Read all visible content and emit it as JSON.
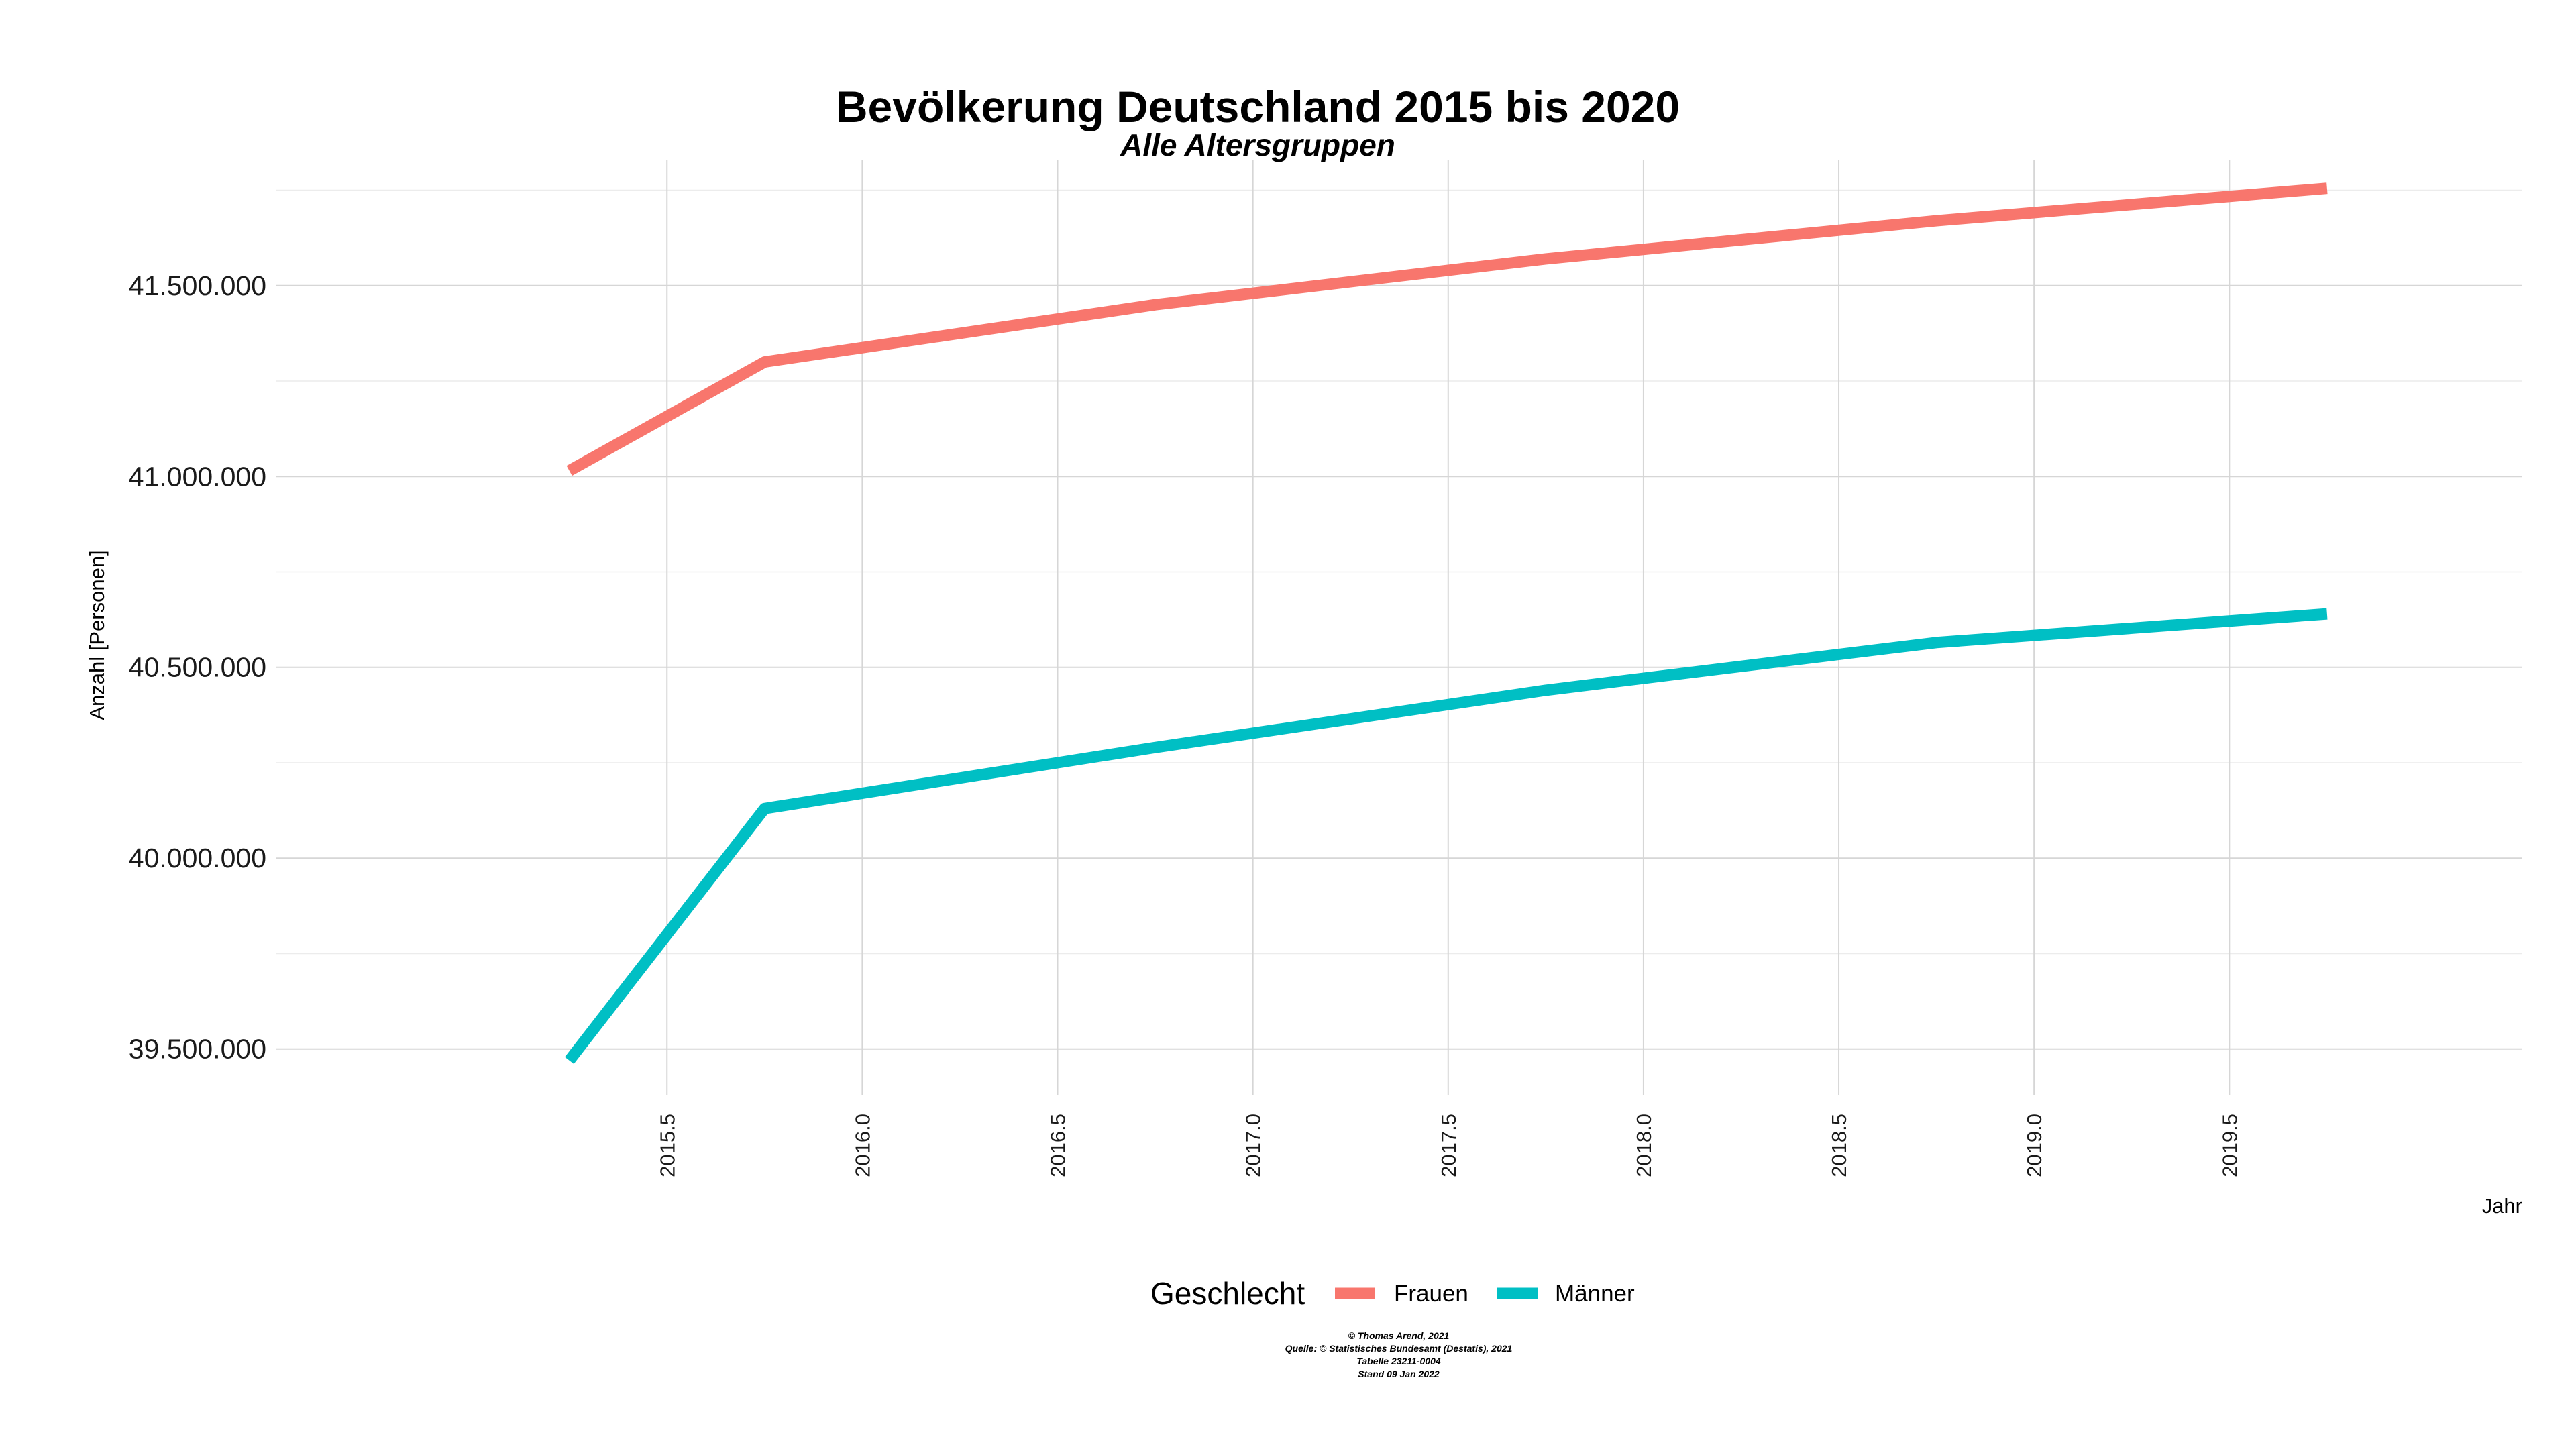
{
  "chart_data": {
    "type": "line",
    "title": "Bevölkerung Deutschland 2015 bis 2020",
    "subtitle": "Alle Altersgruppen",
    "xlabel": "Jahr",
    "ylabel": "Anzahl [Personen]",
    "x": [
      2015.25,
      2015.75,
      2016.75,
      2017.75,
      2018.75,
      2019.75
    ],
    "series": [
      {
        "name": "Frauen",
        "color": "#F8766D",
        "values": [
          41015000,
          41300000,
          41450000,
          41570000,
          41670000,
          41755000
        ]
      },
      {
        "name": "Männer",
        "color": "#00BFC4",
        "values": [
          39470000,
          40130000,
          40290000,
          40440000,
          40565000,
          40640000
        ]
      }
    ],
    "xlim": [
      2014.5,
      2020.25
    ],
    "ylim": [
      39380000,
      41830000
    ],
    "x_ticks": [
      2015.5,
      2016.0,
      2016.5,
      2017.0,
      2017.5,
      2018.0,
      2018.5,
      2019.0,
      2019.5
    ],
    "x_tick_labels": [
      "2015.5",
      "2016.0",
      "2016.5",
      "2017.0",
      "2017.5",
      "2018.0",
      "2018.5",
      "2019.0",
      "2019.5"
    ],
    "y_ticks": [
      39500000,
      40000000,
      40500000,
      41000000,
      41500000
    ],
    "y_tick_labels": [
      "39.500.000",
      "40.000.000",
      "40.500.000",
      "41.000.000",
      "41.500.000"
    ],
    "y_minor_ticks": [
      39750000,
      40250000,
      40750000,
      41250000,
      41750000
    ],
    "grid": true,
    "legend": {
      "title": "Geschlecht",
      "position": "bottom",
      "items": [
        "Frauen",
        "Männer"
      ]
    },
    "caption": [
      "© Thomas Arend, 2021",
      "Quelle: © Statistisches Bundesamt (Destatis), 2021",
      "Tabelle 23211-0004",
      "Stand 09 Jan 2022"
    ]
  }
}
